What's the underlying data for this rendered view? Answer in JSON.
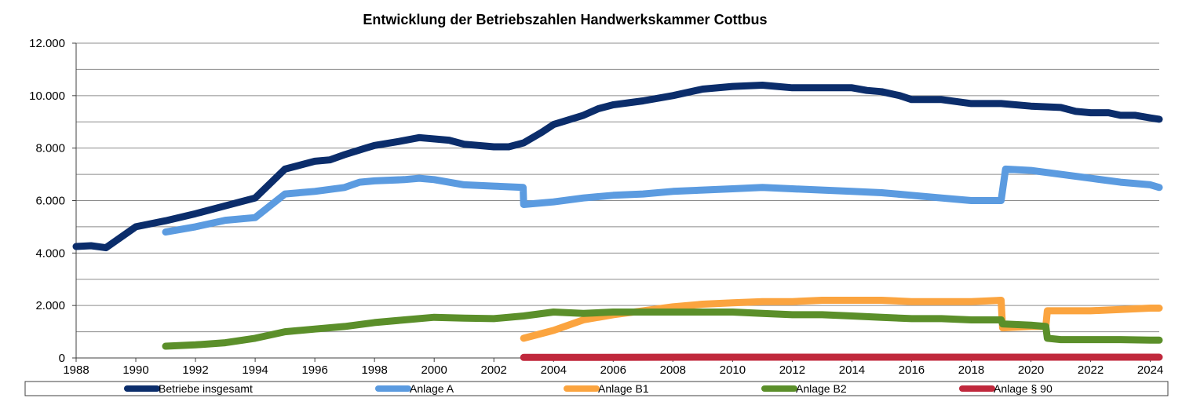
{
  "chart_data": {
    "type": "line",
    "title": "Entwicklung der Betriebszahlen Handwerkskammer Cottbus",
    "xlabel": "",
    "ylabel": "",
    "xlim": [
      1988,
      2024.3
    ],
    "ylim": [
      0,
      12000
    ],
    "grid": true,
    "legend_position": "bottom",
    "x_ticks": [
      1988,
      1990,
      1992,
      1994,
      1996,
      1998,
      2000,
      2002,
      2004,
      2006,
      2008,
      2010,
      2012,
      2014,
      2016,
      2018,
      2020,
      2022,
      2024
    ],
    "x_tick_labels": [
      "1988",
      "1990",
      "1992",
      "1994",
      "1996",
      "1998",
      "2000",
      "2002",
      "2004",
      "2006",
      "2008",
      "2010",
      "2012",
      "2014",
      "2016",
      "2018",
      "2020",
      "2022",
      "2024"
    ],
    "y_ticks": [
      0,
      2000,
      4000,
      6000,
      8000,
      10000,
      12000
    ],
    "y_tick_labels": [
      "0",
      "2.000",
      "4.000",
      "6.000",
      "8.000",
      "10.000",
      "12.000"
    ],
    "series": [
      {
        "name": "Betriebe insgesamt",
        "color": "#0b2d6b",
        "points": [
          [
            1988,
            4250
          ],
          [
            1988.5,
            4280
          ],
          [
            1989,
            4200
          ],
          [
            1990,
            5000
          ],
          [
            1991,
            5230
          ],
          [
            1992,
            5500
          ],
          [
            1993,
            5800
          ],
          [
            1994,
            6100
          ],
          [
            1995,
            7200
          ],
          [
            1996,
            7500
          ],
          [
            1996.5,
            7550
          ],
          [
            1997,
            7750
          ],
          [
            1997.7,
            8000
          ],
          [
            1998,
            8100
          ],
          [
            1998.8,
            8250
          ],
          [
            1999.5,
            8400
          ],
          [
            2000.5,
            8300
          ],
          [
            2001,
            8150
          ],
          [
            2002,
            8050
          ],
          [
            2002.5,
            8050
          ],
          [
            2003,
            8200
          ],
          [
            2003.6,
            8600
          ],
          [
            2004,
            8900
          ],
          [
            2005,
            9250
          ],
          [
            2005.5,
            9500
          ],
          [
            2006,
            9650
          ],
          [
            2007,
            9800
          ],
          [
            2008,
            10000
          ],
          [
            2009,
            10250
          ],
          [
            2010,
            10350
          ],
          [
            2011,
            10400
          ],
          [
            2012,
            10300
          ],
          [
            2013,
            10300
          ],
          [
            2014,
            10300
          ],
          [
            2014.5,
            10200
          ],
          [
            2015,
            10150
          ],
          [
            2015.6,
            10000
          ],
          [
            2016,
            9850
          ],
          [
            2017,
            9850
          ],
          [
            2018,
            9700
          ],
          [
            2019,
            9700
          ],
          [
            2020,
            9600
          ],
          [
            2021,
            9550
          ],
          [
            2021.5,
            9400
          ],
          [
            2022,
            9350
          ],
          [
            2022.6,
            9350
          ],
          [
            2023,
            9250
          ],
          [
            2023.5,
            9250
          ],
          [
            2024,
            9150
          ],
          [
            2024.3,
            9100
          ]
        ]
      },
      {
        "name": "Anlage A",
        "color": "#5b9be0",
        "points": [
          [
            1991,
            4800
          ],
          [
            1992,
            5000
          ],
          [
            1993,
            5250
          ],
          [
            1994,
            5350
          ],
          [
            1995,
            6250
          ],
          [
            1996,
            6350
          ],
          [
            1997,
            6500
          ],
          [
            1997.5,
            6700
          ],
          [
            1998,
            6750
          ],
          [
            1999,
            6800
          ],
          [
            1999.5,
            6850
          ],
          [
            2000,
            6800
          ],
          [
            2001,
            6600
          ],
          [
            2002,
            6550
          ],
          [
            2002.98,
            6500
          ],
          [
            2003,
            5850
          ],
          [
            2004,
            5950
          ],
          [
            2005,
            6100
          ],
          [
            2006,
            6200
          ],
          [
            2007,
            6250
          ],
          [
            2008,
            6350
          ],
          [
            2009,
            6400
          ],
          [
            2010,
            6450
          ],
          [
            2011,
            6500
          ],
          [
            2012,
            6450
          ],
          [
            2013,
            6400
          ],
          [
            2014,
            6350
          ],
          [
            2015,
            6300
          ],
          [
            2016,
            6200
          ],
          [
            2017,
            6100
          ],
          [
            2018,
            6000
          ],
          [
            2019,
            6000
          ],
          [
            2019.15,
            7200
          ],
          [
            2020,
            7150
          ],
          [
            2021,
            7000
          ],
          [
            2022,
            6850
          ],
          [
            2023,
            6700
          ],
          [
            2024,
            6600
          ],
          [
            2024.3,
            6500
          ]
        ]
      },
      {
        "name": "Anlage B1",
        "color": "#fba43f",
        "points": [
          [
            2003,
            750
          ],
          [
            2004,
            1050
          ],
          [
            2005,
            1450
          ],
          [
            2006,
            1650
          ],
          [
            2007,
            1800
          ],
          [
            2008,
            1950
          ],
          [
            2009,
            2050
          ],
          [
            2010,
            2100
          ],
          [
            2011,
            2150
          ],
          [
            2012,
            2150
          ],
          [
            2013,
            2200
          ],
          [
            2014,
            2200
          ],
          [
            2015,
            2200
          ],
          [
            2016,
            2150
          ],
          [
            2017,
            2150
          ],
          [
            2018,
            2150
          ],
          [
            2019,
            2200
          ],
          [
            2019.05,
            1150
          ],
          [
            2020,
            1200
          ],
          [
            2020.5,
            1200
          ],
          [
            2020.55,
            1800
          ],
          [
            2021,
            1800
          ],
          [
            2022,
            1800
          ],
          [
            2023,
            1850
          ],
          [
            2024,
            1900
          ],
          [
            2024.3,
            1900
          ]
        ]
      },
      {
        "name": "Anlage B2",
        "color": "#5b8f2a",
        "points": [
          [
            1991,
            450
          ],
          [
            1992,
            500
          ],
          [
            1993,
            580
          ],
          [
            1994,
            750
          ],
          [
            1995,
            1000
          ],
          [
            1996,
            1100
          ],
          [
            1997,
            1200
          ],
          [
            1998,
            1350
          ],
          [
            1999,
            1450
          ],
          [
            2000,
            1550
          ],
          [
            2001,
            1520
          ],
          [
            2002,
            1500
          ],
          [
            2003,
            1600
          ],
          [
            2004,
            1750
          ],
          [
            2005,
            1700
          ],
          [
            2006,
            1750
          ],
          [
            2007,
            1750
          ],
          [
            2008,
            1750
          ],
          [
            2009,
            1750
          ],
          [
            2010,
            1750
          ],
          [
            2011,
            1700
          ],
          [
            2012,
            1650
          ],
          [
            2013,
            1650
          ],
          [
            2014,
            1600
          ],
          [
            2015,
            1550
          ],
          [
            2016,
            1500
          ],
          [
            2017,
            1500
          ],
          [
            2018,
            1450
          ],
          [
            2019,
            1450
          ],
          [
            2019.05,
            1300
          ],
          [
            2020,
            1250
          ],
          [
            2020.5,
            1200
          ],
          [
            2020.55,
            750
          ],
          [
            2021,
            700
          ],
          [
            2022,
            700
          ],
          [
            2023,
            700
          ],
          [
            2024,
            680
          ],
          [
            2024.3,
            680
          ]
        ]
      },
      {
        "name": "Anlage § 90",
        "color": "#c0283c",
        "points": [
          [
            2003,
            20
          ],
          [
            2010,
            30
          ],
          [
            2020,
            30
          ],
          [
            2024.3,
            30
          ]
        ]
      }
    ]
  }
}
